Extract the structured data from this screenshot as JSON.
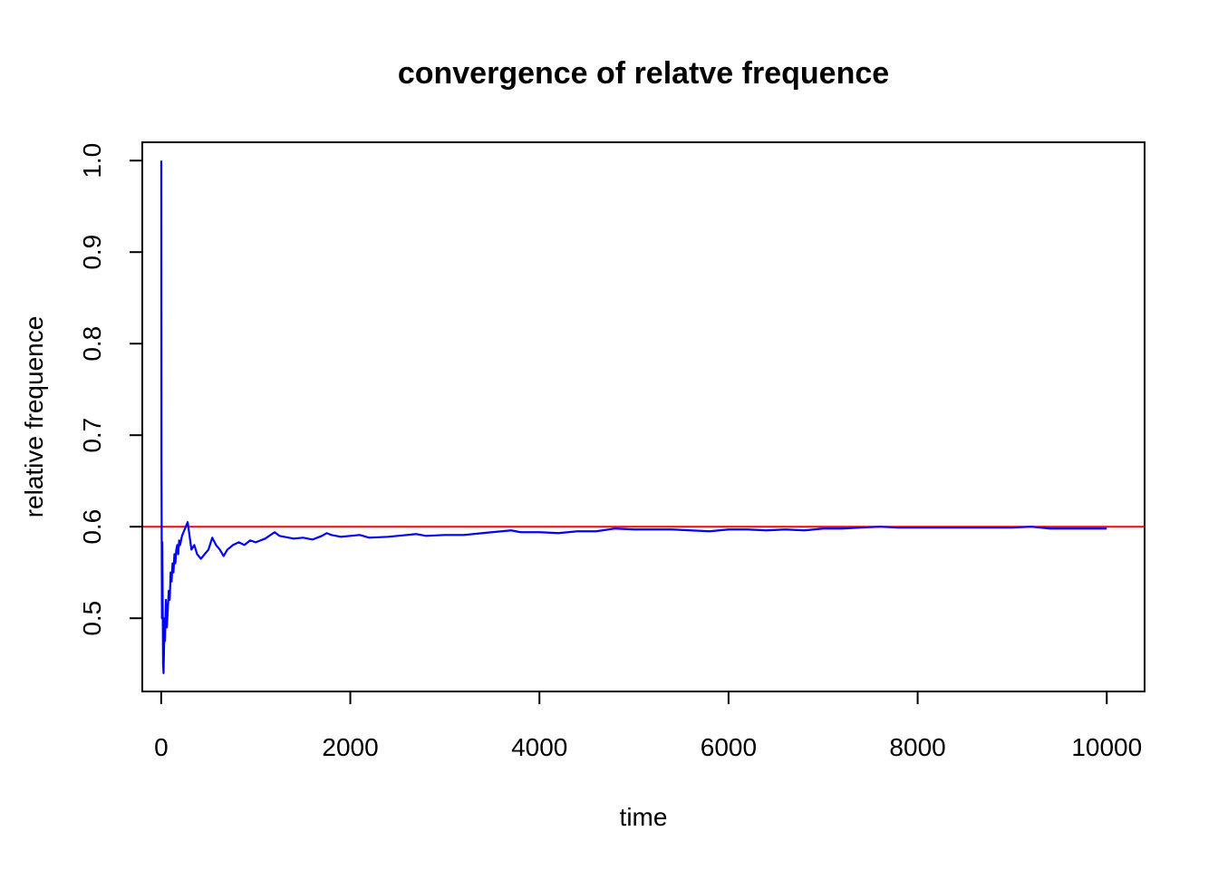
{
  "chart_data": {
    "type": "line",
    "title": "convergence of relatve frequence",
    "xlabel": "time",
    "ylabel": "relative frequence",
    "xlim": [
      -200,
      10400
    ],
    "ylim": [
      0.42,
      1.02
    ],
    "xticks": [
      0,
      2000,
      4000,
      6000,
      8000,
      10000
    ],
    "xtick_labels": [
      "0",
      "2000",
      "4000",
      "6000",
      "8000",
      "10000"
    ],
    "yticks": [
      0.5,
      0.6,
      0.7,
      0.8,
      0.9,
      1.0
    ],
    "ytick_labels": [
      "0.5",
      "0.6",
      "0.7",
      "0.8",
      "0.9",
      "1.0"
    ],
    "grid": false,
    "reference_line": {
      "y": 0.6,
      "color": "#ff0000"
    },
    "series": [
      {
        "color": "#0000ff",
        "x": [
          1,
          3,
          5,
          8,
          12,
          15,
          20,
          25,
          30,
          35,
          40,
          50,
          60,
          70,
          80,
          90,
          100,
          110,
          120,
          130,
          140,
          150,
          160,
          170,
          180,
          190,
          200,
          220,
          240,
          260,
          280,
          300,
          320,
          350,
          380,
          420,
          460,
          500,
          540,
          580,
          620,
          660,
          700,
          760,
          820,
          880,
          940,
          1000,
          1100,
          1200,
          1250,
          1300,
          1400,
          1500,
          1600,
          1700,
          1750,
          1800,
          1900,
          2000,
          2100,
          2200,
          2400,
          2600,
          2700,
          2800,
          3000,
          3200,
          3400,
          3600,
          3700,
          3800,
          4000,
          4200,
          4400,
          4600,
          4800,
          5000,
          5200,
          5400,
          5600,
          5800,
          6000,
          6200,
          6400,
          6600,
          6800,
          7000,
          7200,
          7400,
          7600,
          7800,
          8000,
          8200,
          8400,
          8600,
          8800,
          9000,
          9200,
          9400,
          9600,
          9800,
          10000
        ],
        "y": [
          1.0,
          0.667,
          0.6,
          0.5,
          0.583,
          0.533,
          0.45,
          0.44,
          0.467,
          0.5,
          0.475,
          0.52,
          0.49,
          0.51,
          0.53,
          0.52,
          0.55,
          0.54,
          0.56,
          0.55,
          0.57,
          0.56,
          0.575,
          0.58,
          0.57,
          0.585,
          0.58,
          0.59,
          0.595,
          0.6,
          0.605,
          0.59,
          0.575,
          0.58,
          0.57,
          0.565,
          0.57,
          0.575,
          0.588,
          0.58,
          0.575,
          0.568,
          0.575,
          0.58,
          0.583,
          0.58,
          0.585,
          0.583,
          0.587,
          0.594,
          0.59,
          0.589,
          0.587,
          0.588,
          0.586,
          0.59,
          0.593,
          0.591,
          0.589,
          0.59,
          0.591,
          0.588,
          0.589,
          0.591,
          0.592,
          0.59,
          0.591,
          0.591,
          0.593,
          0.595,
          0.596,
          0.594,
          0.594,
          0.593,
          0.595,
          0.595,
          0.598,
          0.597,
          0.597,
          0.597,
          0.596,
          0.595,
          0.597,
          0.597,
          0.596,
          0.597,
          0.596,
          0.598,
          0.598,
          0.599,
          0.6,
          0.599,
          0.599,
          0.599,
          0.599,
          0.599,
          0.599,
          0.599,
          0.6,
          0.598,
          0.598,
          0.598,
          0.598
        ]
      }
    ]
  }
}
